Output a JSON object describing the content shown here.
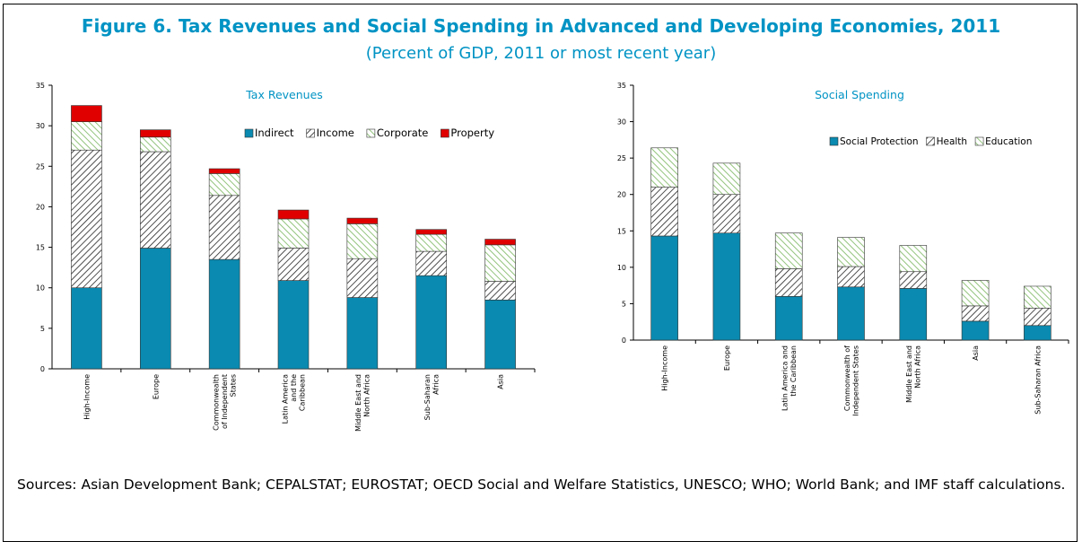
{
  "figure": {
    "title": "Figure 6. Tax Revenues and Social Spending in Advanced and Developing Economies, 2011",
    "subtitle": "(Percent of GDP, 2011 or most recent year)",
    "sources": "Sources: Asian Development Bank; CEPALSTAT; EUROSTAT; OECD Social and Welfare Statistics, UNESCO; WHO; World Bank; and IMF staff calculations."
  },
  "colors": {
    "accent": "#0093c4",
    "teal": "#0a8ab0",
    "hatch_green": "#93c47d",
    "property_red": "#e00000"
  },
  "chart_data": [
    {
      "type": "bar",
      "stacked": true,
      "title": "Tax Revenues",
      "xlabel": "",
      "ylabel": "",
      "ylim": [
        0,
        35
      ],
      "yticks": [
        0,
        5,
        10,
        15,
        20,
        25,
        30,
        35
      ],
      "grid": false,
      "legend_position": "top-right",
      "categories": [
        [
          "High-Income"
        ],
        [
          "Europe"
        ],
        [
          "Commonwealth",
          "of Independent",
          "States"
        ],
        [
          "Latin America",
          "and the",
          "Caribbean"
        ],
        [
          "Middle East and",
          "North Africa"
        ],
        [
          "Sub-Saharan",
          "Africa"
        ],
        [
          "Asia"
        ]
      ],
      "series": [
        {
          "name": "Indirect",
          "pattern": "solid-teal",
          "values": [
            10.0,
            14.9,
            13.5,
            10.9,
            8.8,
            11.5,
            8.5
          ]
        },
        {
          "name": "Income",
          "pattern": "hatch-black",
          "values": [
            17.0,
            11.9,
            7.9,
            4.0,
            4.8,
            3.0,
            2.3
          ]
        },
        {
          "name": "Corporate",
          "pattern": "hatch-green",
          "values": [
            3.5,
            1.8,
            2.7,
            3.6,
            4.3,
            2.1,
            4.5
          ]
        },
        {
          "name": "Property",
          "pattern": "solid-red",
          "values": [
            2.0,
            0.9,
            0.6,
            1.1,
            0.7,
            0.6,
            0.7
          ]
        }
      ]
    },
    {
      "type": "bar",
      "stacked": true,
      "title": "Social Spending",
      "xlabel": "",
      "ylabel": "",
      "ylim": [
        0,
        35
      ],
      "yticks": [
        0,
        5,
        10,
        15,
        20,
        25,
        30,
        35
      ],
      "grid": false,
      "legend_position": "top-right",
      "categories": [
        [
          "High-Income"
        ],
        [
          "Europe"
        ],
        [
          "Latin America and",
          "the Caribbean"
        ],
        [
          "Commonwealth of",
          "Independent States"
        ],
        [
          "Middle East and",
          "North Africa"
        ],
        [
          "Asia"
        ],
        [
          "Sub-Saharan Africa"
        ]
      ],
      "series": [
        {
          "name": "Social Protection",
          "pattern": "solid-teal",
          "values": [
            14.3,
            14.7,
            6.0,
            7.3,
            7.1,
            2.6,
            2.0
          ]
        },
        {
          "name": "Health",
          "pattern": "hatch-black",
          "values": [
            6.7,
            5.3,
            3.8,
            2.8,
            2.3,
            2.1,
            2.4
          ]
        },
        {
          "name": "Education",
          "pattern": "hatch-green",
          "values": [
            5.4,
            4.3,
            4.9,
            4.0,
            3.6,
            3.5,
            3.0
          ]
        }
      ]
    }
  ]
}
